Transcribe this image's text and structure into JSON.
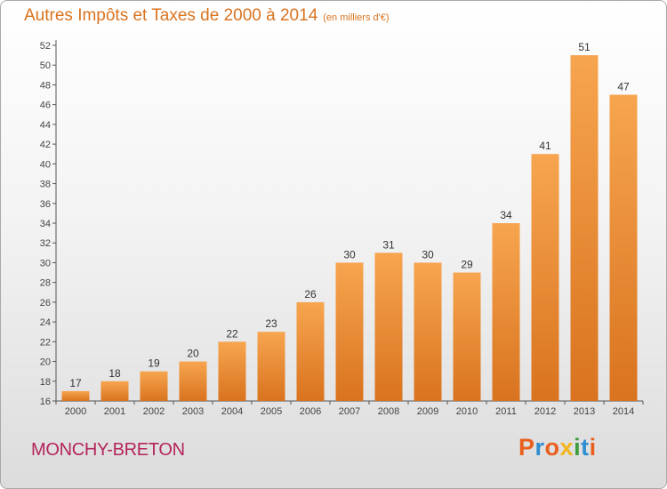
{
  "header": {
    "title": "Autres Impôts et Taxes de 2000 à 2014",
    "unit": "(en milliers d'€)"
  },
  "footer": {
    "commune": "MONCHY-BRETON",
    "brand": "Proxiti"
  },
  "colors": {
    "title": "#d9731f",
    "commune": "#b5245c",
    "bar_light": "#f7a54f",
    "bar_dark": "#d9731f",
    "brand_letters": [
      "#e9601e",
      "#2e8ed0",
      "#e9601e",
      "#f2b51d",
      "#3d9c3d",
      "#2e8ed0",
      "#e9601e"
    ]
  },
  "chart_data": {
    "type": "bar",
    "title": "Autres Impôts et Taxes de 2000 à 2014",
    "subtitle": "(en milliers d'€)",
    "xlabel": "",
    "ylabel": "",
    "categories": [
      "2000",
      "2001",
      "2002",
      "2003",
      "2004",
      "2005",
      "2006",
      "2007",
      "2008",
      "2009",
      "2010",
      "2011",
      "2012",
      "2013",
      "2014"
    ],
    "values": [
      17,
      18,
      19,
      20,
      22,
      23,
      26,
      30,
      31,
      30,
      29,
      34,
      41,
      51,
      47
    ],
    "ylim": [
      16,
      52
    ],
    "yticks": [
      16,
      18,
      20,
      22,
      24,
      26,
      28,
      30,
      32,
      34,
      36,
      38,
      40,
      42,
      44,
      46,
      48,
      50,
      52
    ],
    "grid": false,
    "legend": "none"
  }
}
